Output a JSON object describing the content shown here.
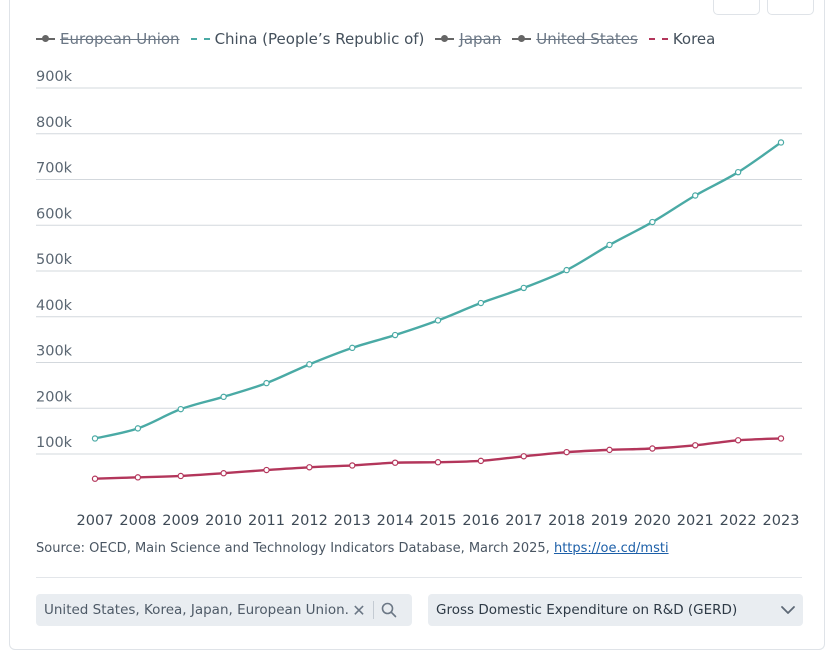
{
  "legend": [
    {
      "label": "European Union",
      "color": "#666666",
      "active": false
    },
    {
      "label": "China (People’s Republic of)",
      "color": "#4aaaa5",
      "active": true,
      "style": "dashed"
    },
    {
      "label": "Japan",
      "color": "#666666",
      "active": false
    },
    {
      "label": "United States",
      "color": "#666666",
      "active": false
    },
    {
      "label": "Korea",
      "color": "#b3365b",
      "active": true,
      "style": "dashed"
    }
  ],
  "chart_data": {
    "type": "line",
    "x": [
      2007,
      2008,
      2009,
      2010,
      2011,
      2012,
      2013,
      2014,
      2015,
      2016,
      2017,
      2018,
      2019,
      2020,
      2021,
      2022,
      2023
    ],
    "series": [
      {
        "name": "China (People’s Republic of)",
        "color": "#4aaaa5",
        "values": [
          134000,
          156000,
          198000,
          225000,
          255000,
          296000,
          332000,
          360000,
          392000,
          430000,
          463000,
          502000,
          557000,
          607000,
          665000,
          716000,
          781000
        ]
      },
      {
        "name": "Korea",
        "color": "#b3365b",
        "values": [
          46000,
          49000,
          52000,
          58000,
          65000,
          71000,
          75000,
          81000,
          82000,
          85000,
          95000,
          104000,
          109000,
          112000,
          119000,
          130000,
          134000
        ]
      }
    ],
    "y_ticks": [
      "900k",
      "800k",
      "700k",
      "600k",
      "500k",
      "400k",
      "300k",
      "200k",
      "100k"
    ],
    "y_tick_values": [
      900000,
      800000,
      700000,
      600000,
      500000,
      400000,
      300000,
      200000,
      100000
    ],
    "ylim": [
      0,
      900000
    ],
    "grid": true,
    "title": "",
    "xlabel": "",
    "ylabel": ""
  },
  "source": {
    "text": "Source: OECD, Main Science and Technology Indicators Database, March 2025, ",
    "link": "https://oe.cd/msti"
  },
  "filter": {
    "value": "United States, Korea, Japan, European Union..."
  },
  "measure": {
    "value": "Gross Domestic Expenditure on R&D (GERD)"
  },
  "icons": {
    "clear": "close-icon",
    "search": "search-icon",
    "dropdown": "chevron-down-icon"
  }
}
